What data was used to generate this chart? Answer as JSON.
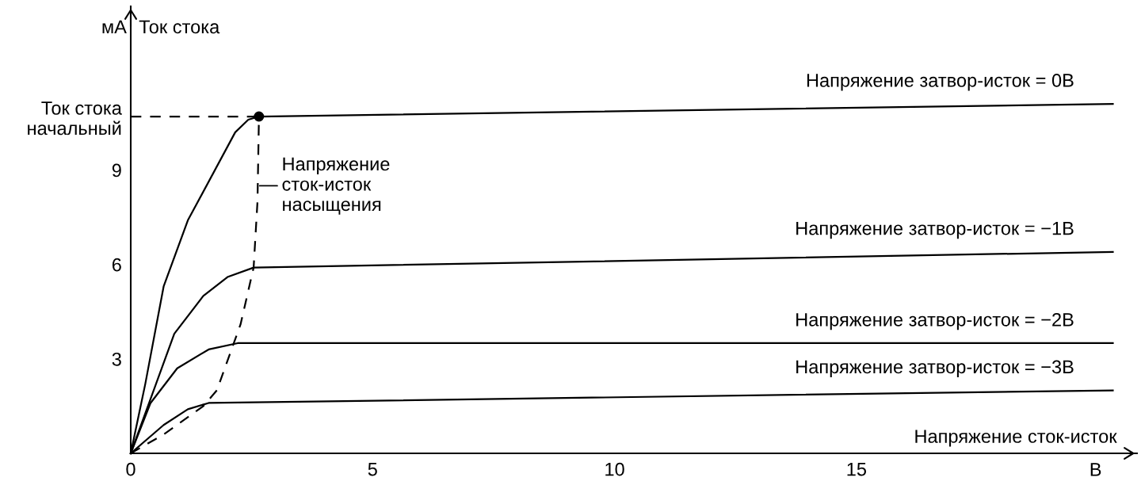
{
  "chart_data": {
    "type": "line",
    "xlabel": "Напряжение сток-исток",
    "ylabel": "Ток стока",
    "xlim": [
      0,
      20.8
    ],
    "ylim": [
      0,
      14.2
    ],
    "xticks": [
      0,
      5,
      10,
      15
    ],
    "yticks": [
      3,
      6,
      9,
      {
        "value": 10.7,
        "label": "Ток стока\nначальный"
      }
    ],
    "grid": false,
    "legend": false,
    "series": [
      {
        "name": "Напряжение затвор-исток = 0В",
        "color": "#000000",
        "line_style": "solid",
        "x": [
          0,
          0.3,
          0.68,
          1.18,
          2.16,
          2.43,
          2.65,
          20.3
        ],
        "values": [
          0,
          2.2,
          5.3,
          7.4,
          10.2,
          10.6,
          10.7,
          11.1
        ]
      },
      {
        "name": "Напряжение затвор-исток = −1В",
        "color": "#000000",
        "line_style": "solid",
        "x": [
          0,
          0.9,
          1.5,
          2.0,
          2.54,
          20.3
        ],
        "values": [
          0,
          3.8,
          5.0,
          5.6,
          5.9,
          6.4
        ]
      },
      {
        "name": "Напряжение затвор-исток = −2В",
        "color": "#000000",
        "line_style": "solid",
        "x": [
          0,
          0.41,
          0.96,
          1.61,
          2.21,
          20.3
        ],
        "values": [
          0,
          1.6,
          2.7,
          3.3,
          3.5,
          3.5
        ]
      },
      {
        "name": "Напряжение затвор-исток = −3В",
        "color": "#000000",
        "line_style": "solid",
        "x": [
          0,
          0.68,
          1.18,
          1.61,
          20.3
        ],
        "values": [
          0,
          0.9,
          1.4,
          1.6,
          2.0
        ]
      },
      {
        "color": "#000000",
        "line_style": "dashed",
        "x": [
          0,
          0.68,
          1.5,
          1.78,
          2.27,
          2.54,
          2.62,
          2.65
        ],
        "values": [
          0,
          0.6,
          1.5,
          2.0,
          4.1,
          5.9,
          8.0,
          10.7
        ]
      },
      {
        "color": "#000000",
        "line_style": "dashed",
        "x": [
          0,
          2.65
        ],
        "values": [
          10.7,
          10.7
        ]
      },
      {
        "type": "scatter",
        "color": "#000000",
        "marker": "circle",
        "x": [
          2.65
        ],
        "values": [
          10.7
        ]
      }
    ],
    "annotations": [
      {
        "text": "Напряжение\nсток-исток\nнасыщения",
        "x": 2.62,
        "y": 8.5
      },
      "мА",
      "В"
    ]
  }
}
